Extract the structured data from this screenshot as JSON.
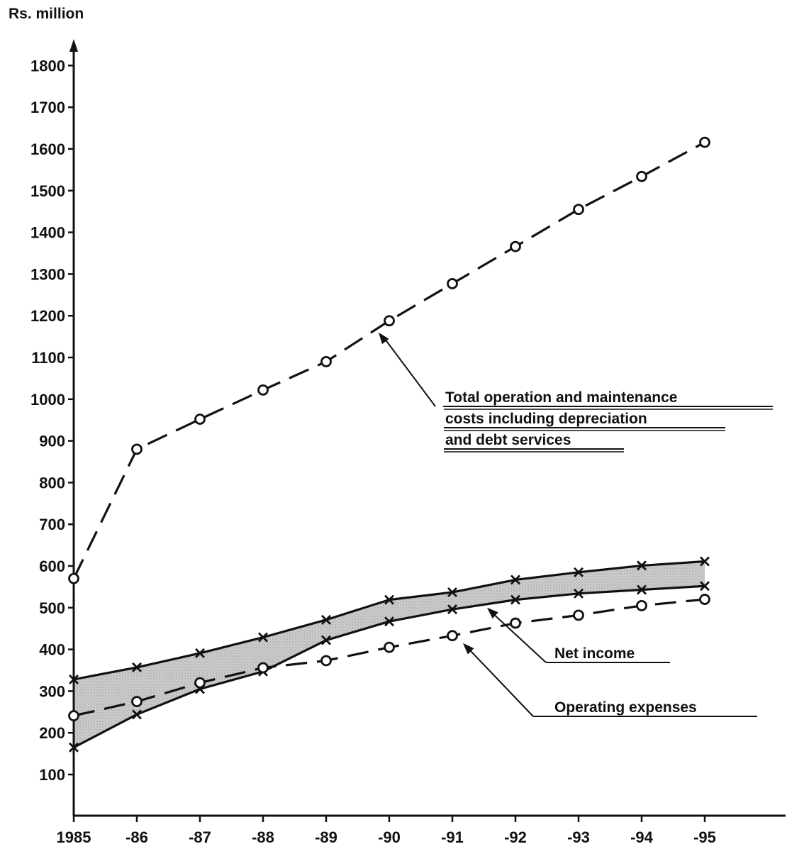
{
  "chart_data": {
    "type": "line",
    "ylabel": "Rs. million",
    "xlabel": "",
    "categories": [
      "1985",
      "-86",
      "-87",
      "-88",
      "-89",
      "-90",
      "-91",
      "-92",
      "-93",
      "-94",
      "-95"
    ],
    "ylim": [
      0,
      1800
    ],
    "yticks": [
      100,
      200,
      300,
      400,
      500,
      600,
      700,
      800,
      900,
      1000,
      1100,
      1200,
      1300,
      1400,
      1500,
      1600,
      1700,
      1800
    ],
    "grid": false,
    "series": [
      {
        "values": [
          570,
          880,
          952,
          1022,
          1090,
          1188,
          1277,
          1366,
          1455,
          1534,
          1616
        ],
        "line_style": "dashed",
        "marker": "circle",
        "color": "#111111"
      },
      {
        "values": [
          328,
          357,
          391,
          429,
          471,
          519,
          537,
          567,
          585,
          601,
          611
        ],
        "line_style": "solid",
        "marker": "x",
        "color": "#111111"
      },
      {
        "values": [
          165,
          244,
          305,
          347,
          422,
          467,
          496,
          519,
          534,
          543,
          552
        ],
        "line_style": "solid",
        "marker": "x",
        "color": "#111111"
      },
      {
        "values": [
          241,
          275,
          320,
          356,
          373,
          405,
          433,
          463,
          482,
          505,
          520
        ],
        "line_style": "dashed",
        "marker": "circle",
        "color": "#111111"
      }
    ],
    "band_between_series": [
      1,
      2
    ],
    "band_color": "#b8b8b8",
    "annotations": [
      {
        "lines": [
          "Total operation and maintenance",
          "costs including depreciation",
          "and debt services"
        ],
        "points_to": {
          "x": "-90",
          "y": 1160
        }
      },
      {
        "lines": [
          "Net income"
        ],
        "points_to": {
          "x": "-92",
          "y": 500
        }
      },
      {
        "lines": [
          "Operating expenses"
        ],
        "points_to": {
          "x": "-91",
          "y": 415
        }
      }
    ]
  }
}
